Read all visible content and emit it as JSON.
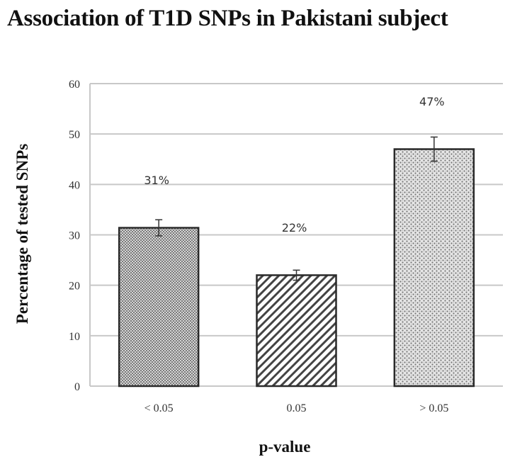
{
  "title": "Association of T1D SNPs in Pakistani subject",
  "axes": {
    "ylabel": "Percentage of tested SNPs",
    "xlabel": "p-value",
    "yticks": [
      "0",
      "10",
      "20",
      "30",
      "40",
      "50",
      "60"
    ]
  },
  "colors": {
    "gridline": "#c8c8c8",
    "bar_outline": "#2a2a2a",
    "pattern": "#555555"
  },
  "chart_data": {
    "type": "bar",
    "title": "Association of T1D SNPs in Pakistani subject",
    "xlabel": "p-value",
    "ylabel": "Percentage of tested SNPs",
    "categories": [
      "< 0.05",
      "0.05",
      "> 0.05"
    ],
    "values": [
      31.4,
      22,
      47
    ],
    "error": [
      1.6,
      1.0,
      2.4
    ],
    "data_labels": [
      "31%",
      "22%",
      "47%"
    ],
    "patterns": [
      "checkered",
      "diagonal-stripes",
      "dotted"
    ],
    "ylim": [
      0,
      60
    ],
    "yticks": [
      0,
      10,
      20,
      30,
      40,
      50,
      60
    ],
    "grid": true,
    "legend": null
  }
}
